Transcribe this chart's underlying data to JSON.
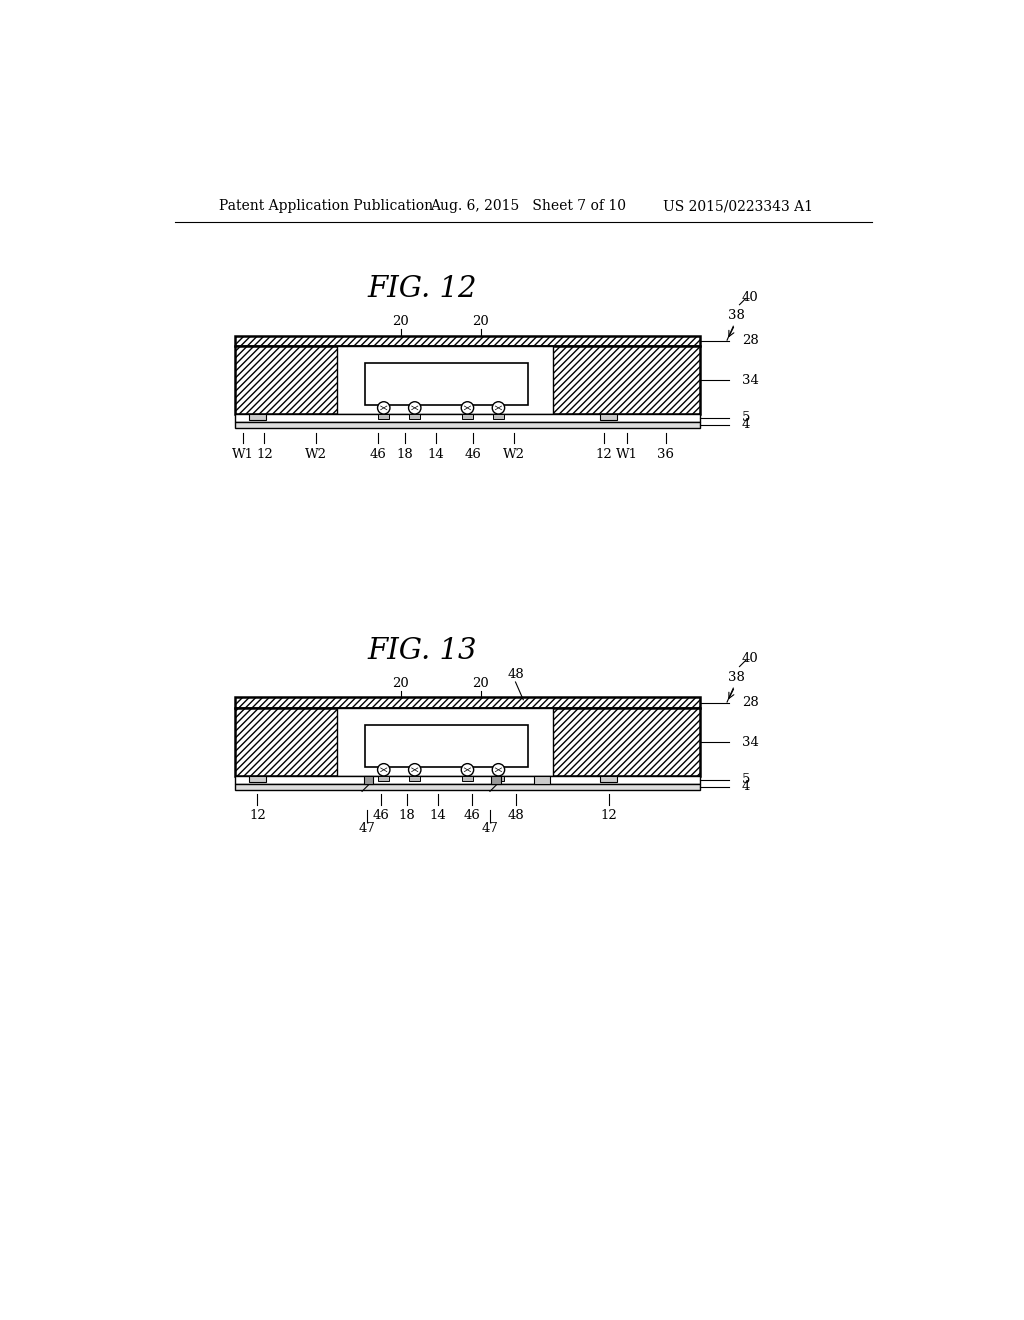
{
  "bg_color": "#ffffff",
  "header_left": "Patent Application Publication",
  "header_mid": "Aug. 6, 2015   Sheet 7 of 10",
  "header_right": "US 2015/0223343 A1",
  "fig12_title": "FIG. 12",
  "fig13_title": "FIG. 13",
  "line_color": "#000000"
}
